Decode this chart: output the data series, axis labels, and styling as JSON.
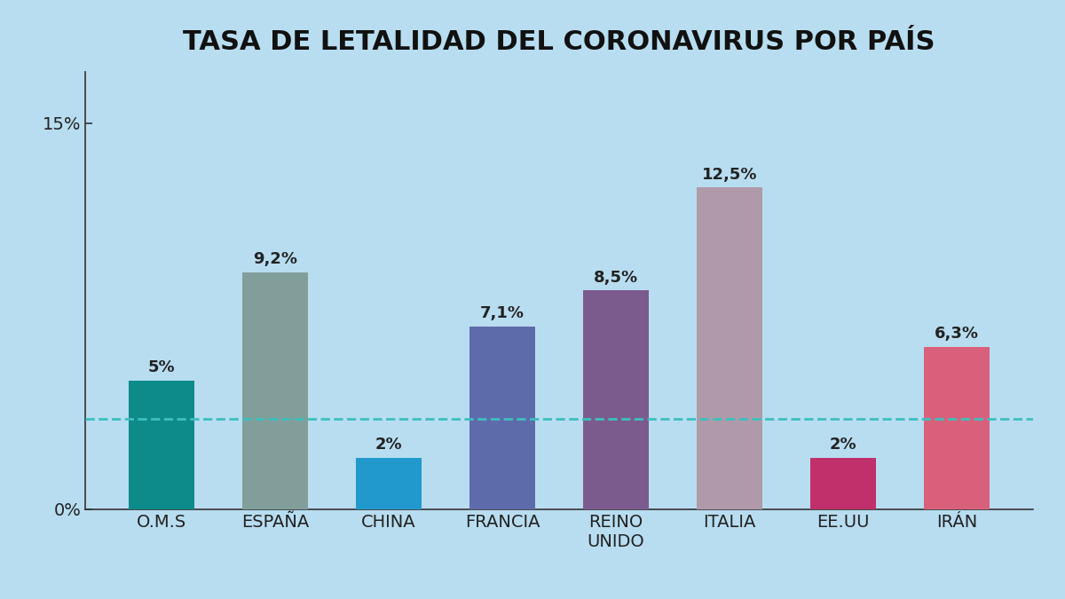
{
  "title": "TASA DE LETALIDAD DEL CORONAVIRUS POR PAÍS",
  "categories": [
    "O.M.S",
    "ESPAÑA",
    "CHINA",
    "FRANCIA",
    "REINO\nUNIDO",
    "ITALIA",
    "EE.UU",
    "IRÁN"
  ],
  "values": [
    5.0,
    9.2,
    2.0,
    7.1,
    8.5,
    12.5,
    2.0,
    6.3
  ],
  "labels": [
    "5%",
    "9,2%",
    "2%",
    "7,1%",
    "8,5%",
    "12,5%",
    "2%",
    "6,3%"
  ],
  "bar_colors": [
    "#0d8a8a",
    "#829e9a",
    "#2299cc",
    "#5e6baa",
    "#7b5b8e",
    "#b09aaa",
    "#c0306a",
    "#d9607a"
  ],
  "background_color": "#b8ddf0",
  "dashed_line_y": 3.5,
  "dashed_line_color": "#3dbfbf",
  "ylim": [
    0,
    17
  ],
  "yticks": [
    0,
    15
  ],
  "ytick_labels": [
    "0%",
    "15%"
  ],
  "ytick_notch": 15,
  "title_fontsize": 22,
  "tick_fontsize": 14,
  "bar_label_fontsize": 13,
  "bar_width": 0.58
}
